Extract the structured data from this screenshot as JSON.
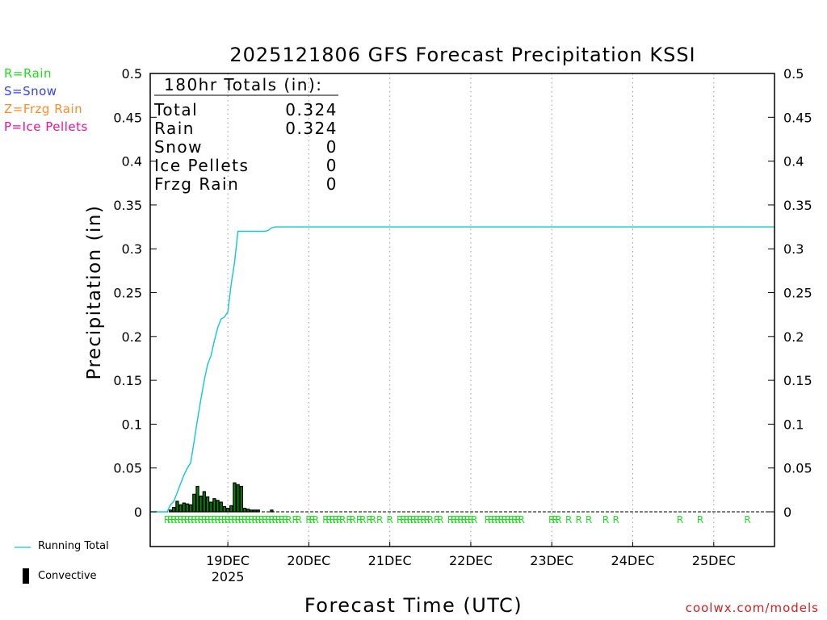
{
  "chart_data": {
    "type": "bar+line",
    "title": "2025121806 GFS Forecast Precipitation KSSI",
    "ylabel": "Precipitation (in)",
    "xlabel": "Forecast Time (UTC)",
    "ylim": [
      0,
      0.5
    ],
    "yticks": [
      "0",
      "0.05",
      "0.1",
      "0.15",
      "0.2",
      "0.25",
      "0.3",
      "0.35",
      "0.4",
      "0.45",
      "0.5"
    ],
    "xlim_hours": [
      -5,
      180
    ],
    "day_ticks": [
      {
        "label": "19DEC",
        "hour": 18,
        "year": "2025"
      },
      {
        "label": "20DEC",
        "hour": 42
      },
      {
        "label": "21DEC",
        "hour": 66
      },
      {
        "label": "22DEC",
        "hour": 90
      },
      {
        "label": "23DEC",
        "hour": 114
      },
      {
        "label": "24DEC",
        "hour": 138
      },
      {
        "label": "25DEC",
        "hour": 162
      }
    ],
    "totals": {
      "header": "180hr Totals (in):",
      "rows": [
        {
          "label": "Total",
          "value": "0.324"
        },
        {
          "label": "Rain",
          "value": "0.324"
        },
        {
          "label": "Snow",
          "value": "0"
        },
        {
          "label": "Ice Pellets",
          "value": "0"
        },
        {
          "label": "Frzg Rain",
          "value": "0"
        }
      ]
    },
    "running_total": {
      "name": "Running Total",
      "hours": [
        -5,
        0,
        1,
        2,
        3,
        4,
        5,
        6,
        7,
        8,
        9,
        10,
        11,
        12,
        13,
        14,
        15,
        16,
        17,
        18,
        19,
        20,
        21,
        22,
        23,
        24,
        25,
        26,
        27,
        28,
        29,
        30,
        31,
        32,
        35,
        36,
        38,
        40,
        180
      ],
      "values": [
        0,
        0,
        0.008,
        0.012,
        0.022,
        0.032,
        0.042,
        0.05,
        0.056,
        0.08,
        0.105,
        0.128,
        0.15,
        0.168,
        0.178,
        0.195,
        0.21,
        0.22,
        0.222,
        0.228,
        0.26,
        0.285,
        0.32,
        0.32,
        0.32,
        0.32,
        0.32,
        0.32,
        0.32,
        0.32,
        0.32,
        0.321,
        0.324,
        0.325,
        0.325,
        0.325,
        0.325,
        0.325,
        0.325
      ]
    },
    "bars": {
      "name": "Convective",
      "hours": [
        1,
        2,
        3,
        4,
        5,
        6,
        7,
        8,
        9,
        10,
        11,
        12,
        13,
        14,
        15,
        16,
        17,
        18,
        19,
        20,
        21,
        22,
        23,
        24,
        25,
        26,
        27,
        31
      ],
      "values": [
        0.002,
        0.005,
        0.012,
        0.008,
        0.01,
        0.009,
        0.008,
        0.02,
        0.029,
        0.018,
        0.023,
        0.017,
        0.011,
        0.015,
        0.013,
        0.011,
        0.006,
        0.004,
        0.007,
        0.033,
        0.031,
        0.029,
        0.004,
        0.003,
        0.002,
        0.002,
        0.002,
        0.002
      ],
      "precip_hours": [
        1,
        2,
        3,
        4,
        5,
        6,
        7,
        8,
        9,
        10,
        11,
        12,
        13,
        14,
        15,
        16,
        17,
        18,
        19,
        20,
        21,
        22,
        23,
        24,
        25,
        26,
        27,
        31
      ]
    },
    "type_markers": {
      "letter": "R",
      "hours": [
        0,
        1,
        2,
        3,
        4,
        5,
        6,
        7,
        8,
        9,
        10,
        11,
        12,
        13,
        14,
        15,
        16,
        17,
        18,
        19,
        20,
        21,
        22,
        23,
        24,
        25,
        26,
        27,
        28,
        29,
        30,
        31,
        32,
        33,
        34,
        35,
        36,
        38,
        39,
        42,
        43,
        44,
        47,
        48,
        49,
        50,
        51,
        52,
        54,
        55,
        57,
        58,
        60,
        61,
        63,
        66,
        69,
        70,
        71,
        72,
        73,
        74,
        75,
        76,
        77,
        78,
        80,
        81,
        84,
        85,
        86,
        87,
        88,
        89,
        90,
        91,
        95,
        96,
        97,
        98,
        99,
        100,
        101,
        102,
        103,
        104,
        105,
        114,
        115,
        116,
        119,
        122,
        125,
        130,
        133,
        152,
        158,
        172
      ]
    },
    "colors": {
      "rain": "#22dd22",
      "snow": "#3344ee",
      "frzg": "#ff8c2a",
      "ice": "#ee1199",
      "running_total": "#11c8d0",
      "bars": "#000000",
      "bar_fill": "#008800",
      "grid": "#9a9a9a",
      "credit": "#d42020"
    }
  },
  "legend_top": [
    {
      "key": "rain",
      "text": "R=Rain"
    },
    {
      "key": "snow",
      "text": "S=Snow"
    },
    {
      "key": "frzg",
      "text": "Z=Frzg Rain"
    },
    {
      "key": "ice",
      "text": "P=Ice Pellets"
    }
  ],
  "legend_bottom": {
    "running_total": "Running Total",
    "convective": "Convective"
  },
  "credit": "coolwx.com/models"
}
